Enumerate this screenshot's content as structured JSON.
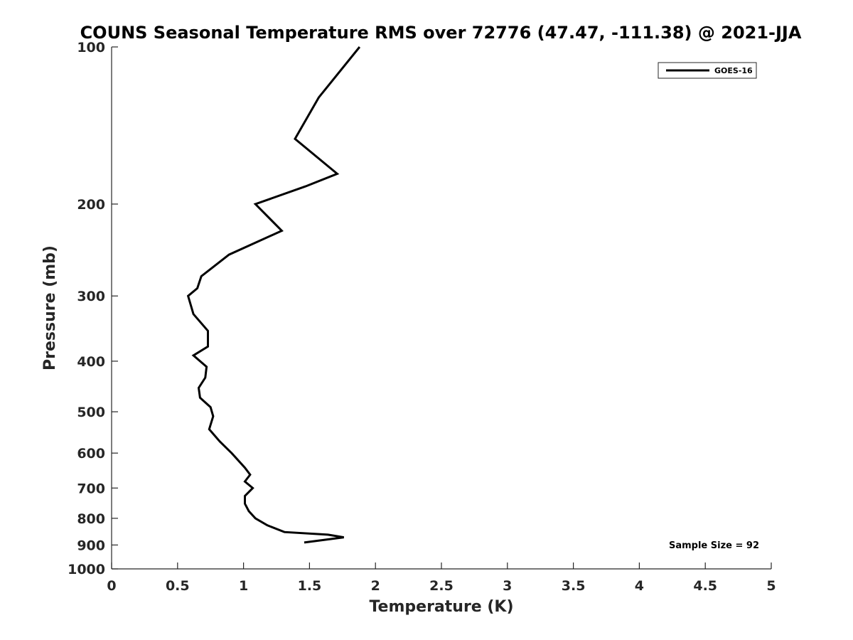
{
  "chart_data": {
    "type": "line",
    "title": "COUNS Seasonal Temperature RMS over 72776 (47.47, -111.38) @ 2021-JJA",
    "xlabel": "Temperature (K)",
    "ylabel": "Pressure (mb)",
    "xlim": [
      0,
      5
    ],
    "ylim": [
      100,
      1000
    ],
    "y_scale": "log",
    "y_reversed": true,
    "grid": false,
    "legend_position": "top-right",
    "x_ticks": [
      0,
      0.5,
      1,
      1.5,
      2,
      2.5,
      3,
      3.5,
      4,
      4.5,
      5
    ],
    "x_tick_labels": [
      "0",
      "0.5",
      "1",
      "1.5",
      "2",
      "2.5",
      "3",
      "3.5",
      "4",
      "4.5",
      "5"
    ],
    "y_ticks": [
      100,
      200,
      300,
      400,
      500,
      600,
      700,
      800,
      900,
      1000
    ],
    "y_tick_labels": [
      "100",
      "200",
      "300",
      "400",
      "500",
      "600",
      "700",
      "800",
      "900",
      "1000"
    ],
    "series": [
      {
        "name": "GOES-16",
        "color": "#000000",
        "x": [
          1.88,
          1.57,
          1.39,
          1.71,
          1.47,
          1.09,
          1.29,
          0.89,
          0.68,
          0.65,
          0.58,
          0.62,
          0.73,
          0.73,
          0.62,
          0.72,
          0.71,
          0.66,
          0.67,
          0.75,
          0.77,
          0.74,
          0.82,
          0.91,
          1.01,
          1.05,
          1.01,
          1.07,
          1.01,
          1.01,
          1.04,
          1.09,
          1.18,
          1.31,
          1.64,
          1.76,
          1.46
        ],
        "y": [
          100,
          125,
          150,
          175,
          185,
          200,
          225,
          250,
          275,
          290,
          300,
          325,
          350,
          375,
          390,
          410,
          430,
          450,
          470,
          490,
          510,
          540,
          570,
          600,
          640,
          660,
          680,
          700,
          725,
          750,
          775,
          800,
          825,
          850,
          860,
          870,
          890
        ]
      }
    ],
    "annotations": [
      "Sample Size = 92"
    ]
  }
}
